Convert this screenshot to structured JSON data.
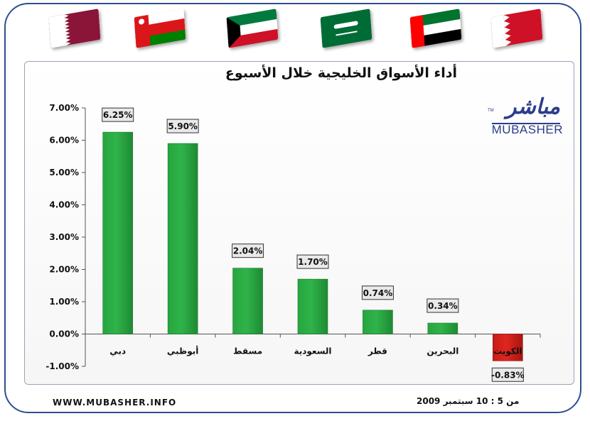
{
  "header": {
    "flags": [
      {
        "country": "Qatar",
        "colors": [
          "#ffffff",
          "#8a1538"
        ]
      },
      {
        "country": "Oman",
        "colors": [
          "#db161b",
          "#ffffff",
          "#008000"
        ]
      },
      {
        "country": "Kuwait",
        "colors": [
          "#007a3d",
          "#ffffff",
          "#ce1126",
          "#000000"
        ]
      },
      {
        "country": "Saudi Arabia",
        "colors": [
          "#006c35",
          "#ffffff"
        ]
      },
      {
        "country": "UAE",
        "colors": [
          "#00732f",
          "#ffffff",
          "#000000",
          "#ff0000"
        ]
      },
      {
        "country": "Bahrain",
        "colors": [
          "#ffffff",
          "#ce1126"
        ]
      }
    ]
  },
  "logo": {
    "arabic": "مباشر",
    "english": "MUBASHER",
    "tm": "TM"
  },
  "footer": {
    "website": "WWW.MUBASHER.INFO",
    "date_range": "من 5 : 10 سبتمبر 2009"
  },
  "colors": {
    "frame": "#2d4f8e",
    "positive_bar": "#2fb34a",
    "negative_bar": "#e0261e",
    "label_box": "#e9e9e9"
  },
  "chart_data": {
    "type": "bar",
    "title": "أداء الأسواق الخليجية خلال الأسبوع",
    "categories": [
      "دبي",
      "أبوظبي",
      "مسقط",
      "السعودية",
      "قطر",
      "البحرين",
      "الكويت"
    ],
    "values": [
      6.25,
      5.9,
      2.04,
      1.7,
      0.74,
      0.34,
      -0.83
    ],
    "value_labels": [
      "6.25%",
      "5.90%",
      "2.04%",
      "1.70%",
      "0.74%",
      "0.34%",
      "-0.83%"
    ],
    "yticks": [
      "7.00%",
      "6.00%",
      "5.00%",
      "4.00%",
      "3.00%",
      "2.00%",
      "1.00%",
      "0.00%",
      "-1.00%"
    ],
    "ytick_values": [
      7,
      6,
      5,
      4,
      3,
      2,
      1,
      0,
      -1
    ],
    "ylim": [
      -1,
      7
    ],
    "xlabel": "",
    "ylabel": "",
    "grid": false,
    "legend": "none"
  }
}
